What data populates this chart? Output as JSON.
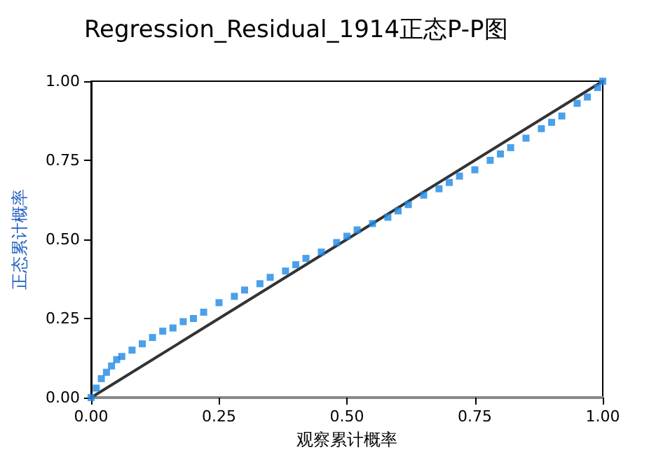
{
  "chart_data": {
    "type": "scatter",
    "title": "Regression_Residual_1914正态P-P图",
    "xlabel": "观察累计概率",
    "ylabel": "正态累计概率",
    "xlim": [
      0,
      1
    ],
    "ylim": [
      0,
      1
    ],
    "xticks": [
      {
        "value": 0,
        "label": "0.00"
      },
      {
        "value": 0.25,
        "label": "0.25"
      },
      {
        "value": 0.5,
        "label": "0.50"
      },
      {
        "value": 0.75,
        "label": "0.75"
      },
      {
        "value": 1,
        "label": "1.00"
      }
    ],
    "yticks": [
      {
        "value": 0,
        "label": "0.00"
      },
      {
        "value": 0.25,
        "label": "0.25"
      },
      {
        "value": 0.5,
        "label": "0.50"
      },
      {
        "value": 0.75,
        "label": "0.75"
      },
      {
        "value": 1,
        "label": "1.00"
      }
    ],
    "series": [
      {
        "color": "#1e88e5",
        "marker": "square",
        "x": [
          0,
          0.01,
          0.02,
          0.03,
          0.04,
          0.05,
          0.06,
          0.08,
          0.1,
          0.12,
          0.14,
          0.16,
          0.18,
          0.2,
          0.22,
          0.25,
          0.28,
          0.3,
          0.33,
          0.35,
          0.38,
          0.4,
          0.42,
          0.45,
          0.48,
          0.5,
          0.52,
          0.55,
          0.58,
          0.6,
          0.62,
          0.65,
          0.68,
          0.7,
          0.72,
          0.75,
          0.78,
          0.8,
          0.82,
          0.85,
          0.88,
          0.9,
          0.92,
          0.95,
          0.97,
          0.99,
          1
        ],
        "values": [
          0,
          0.03,
          0.06,
          0.08,
          0.1,
          0.12,
          0.13,
          0.15,
          0.17,
          0.19,
          0.21,
          0.22,
          0.24,
          0.25,
          0.27,
          0.3,
          0.32,
          0.34,
          0.36,
          0.38,
          0.4,
          0.42,
          0.44,
          0.46,
          0.49,
          0.51,
          0.53,
          0.55,
          0.57,
          0.59,
          0.61,
          0.64,
          0.66,
          0.68,
          0.7,
          0.72,
          0.75,
          0.77,
          0.79,
          0.82,
          0.85,
          0.87,
          0.89,
          0.93,
          0.95,
          0.98,
          1
        ]
      },
      {
        "type": "line",
        "color": "#333333",
        "marker": "none",
        "line_style": "solid",
        "x": [
          0,
          1
        ],
        "values": [
          0,
          1
        ]
      }
    ],
    "grid": false
  }
}
